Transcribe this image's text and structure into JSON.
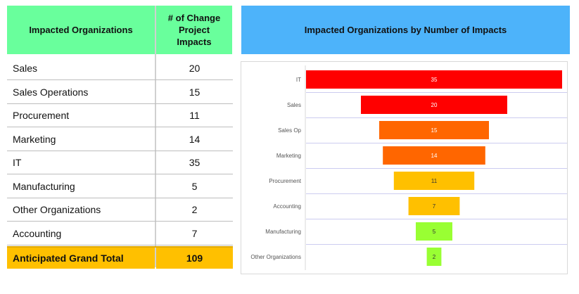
{
  "table": {
    "headers": [
      "Impacted Organizations",
      "# of Change Project Impacts"
    ],
    "rows": [
      {
        "org": "Sales",
        "impacts": "20"
      },
      {
        "org": "Sales Operations",
        "impacts": "15"
      },
      {
        "org": "Procurement",
        "impacts": "11"
      },
      {
        "org": "Marketing",
        "impacts": "14"
      },
      {
        "org": "IT",
        "impacts": "35"
      },
      {
        "org": "Manufacturing",
        "impacts": "5"
      },
      {
        "org": "Other Organizations",
        "impacts": "2"
      },
      {
        "org": "Accounting",
        "impacts": "7"
      }
    ],
    "total": {
      "label": "Anticipated Grand Total",
      "value": "109"
    }
  },
  "chart_data": {
    "type": "funnel",
    "title": "Impacted Organizations by Number of Impacts",
    "categories": [
      "IT",
      "Sales",
      "Sales Op",
      "Marketing",
      "Procurement",
      "Accounting",
      "Manufacturing",
      "Other Organizations"
    ],
    "values": [
      35,
      20,
      15,
      14,
      11,
      7,
      5,
      2
    ],
    "colors": [
      "#FF0000",
      "#FF0000",
      "#FF6600",
      "#FF6600",
      "#FFC000",
      "#FFC000",
      "#99FF33",
      "#99FF33"
    ],
    "label_colors": [
      "#ffffff",
      "#ffffff",
      "#ffffff",
      "#ffffff",
      "#333333",
      "#333333",
      "#333333",
      "#333333"
    ],
    "grid": false
  }
}
